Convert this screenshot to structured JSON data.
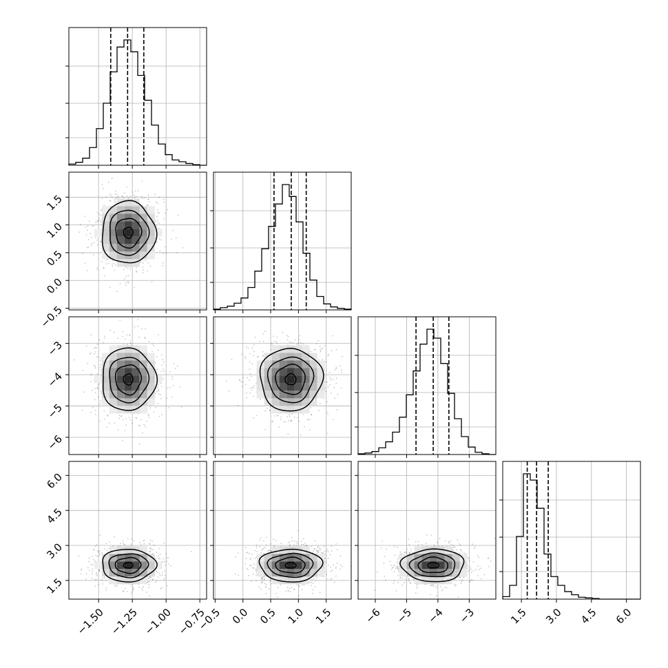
{
  "chart_data": {
    "type": "corner",
    "title": "",
    "grid": true,
    "parameters": [
      {
        "range": [
          -1.72,
          -0.7
        ],
        "ticks": [
          -1.5,
          -1.25,
          -1.0,
          -0.75
        ],
        "tick_labels": [
          "−1.50",
          "−1.25",
          "−1.00",
          "−0.75"
        ],
        "center": -1.28,
        "sigma": 0.1,
        "quantiles": [
          -1.41,
          -1.285,
          -1.165
        ]
      },
      {
        "range": [
          -0.53,
          1.95
        ],
        "ticks": [
          -0.5,
          0.0,
          0.5,
          1.0,
          1.5
        ],
        "tick_labels": [
          "−0.5",
          "0.0",
          "0.5",
          "1.0",
          "1.5"
        ],
        "center": 0.86,
        "sigma": 0.28,
        "quantiles": [
          0.56,
          0.87,
          1.14
        ]
      },
      {
        "range": [
          -6.55,
          -2.15
        ],
        "ticks": [
          -6,
          -5,
          -4,
          -3
        ],
        "tick_labels": [
          "−6",
          "−5",
          "−4",
          "−3"
        ],
        "center": -4.15,
        "sigma": 0.5,
        "quantiles": [
          -4.7,
          -4.15,
          -3.65
        ]
      },
      {
        "range": [
          0.7,
          6.6
        ],
        "ticks": [
          1.5,
          3.0,
          4.5,
          6.0
        ],
        "tick_labels": [
          "1.5",
          "3.0",
          "4.5",
          "6.0"
        ],
        "center": 2.15,
        "sigma": 0.35,
        "quantiles": [
          1.75,
          2.15,
          2.65
        ]
      }
    ],
    "histograms": [
      [
        2,
        5,
        12,
        30,
        62,
        105,
        158,
        200,
        212,
        192,
        152,
        110,
        68,
        36,
        18,
        9,
        6,
        3,
        1,
        0
      ],
      [
        1,
        3,
        5,
        9,
        16,
        30,
        52,
        82,
        112,
        142,
        168,
        152,
        118,
        76,
        40,
        18,
        8,
        4,
        2,
        1
      ],
      [
        1,
        2,
        4,
        9,
        17,
        30,
        50,
        80,
        112,
        148,
        168,
        156,
        122,
        82,
        48,
        24,
        10,
        3,
        1,
        0
      ],
      [
        4,
        22,
        100,
        200,
        190,
        145,
        72,
        36,
        22,
        12,
        7,
        3,
        2,
        1,
        0,
        0,
        0,
        0,
        0,
        0
      ]
    ]
  }
}
